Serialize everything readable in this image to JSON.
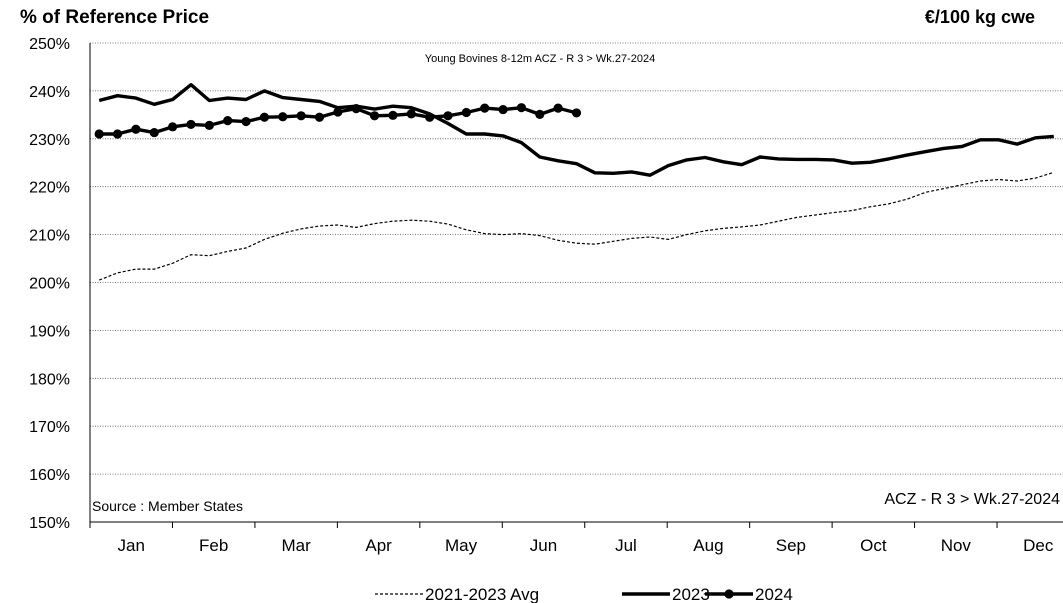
{
  "header": {
    "title": "% of Reference Price",
    "unit": "€/100 kg  cwe"
  },
  "chart_data": {
    "type": "line",
    "subtitle": "Young Bovines 8-12m ACZ - R 3     > Wk.27-2024",
    "source_note": "Source : Member States",
    "series_note": "ACZ - R 3     > Wk.27-2024",
    "x_categories": [
      "Jan",
      "Feb",
      "Mar",
      "Apr",
      "May",
      "Jun",
      "Jul",
      "Aug",
      "Sep",
      "Oct",
      "Nov",
      "Dec"
    ],
    "y_ticks": [
      "150%",
      "160%",
      "170%",
      "180%",
      "190%",
      "200%",
      "210%",
      "220%",
      "230%",
      "240%",
      "250%"
    ],
    "ylim": [
      150,
      250
    ],
    "xlim_weeks": [
      1,
      53
    ],
    "grid": "horizontal-dotted",
    "legend_position": "bottom",
    "series": [
      {
        "name": "2021-2023 Avg",
        "style": "dashed",
        "color": "#000000",
        "x": [
          1,
          2,
          3,
          4,
          5,
          6,
          7,
          8,
          9,
          10,
          11,
          12,
          13,
          14,
          15,
          16,
          17,
          18,
          19,
          20,
          21,
          22,
          23,
          24,
          25,
          26,
          27,
          28,
          29,
          30,
          31,
          32,
          33,
          34,
          35,
          36,
          37,
          38,
          39,
          40,
          41,
          42,
          43,
          44,
          45,
          46,
          47,
          48,
          49,
          50,
          51,
          52,
          53
        ],
        "values": [
          200.5,
          202,
          202.8,
          202.8,
          204,
          205.8,
          205.6,
          206.5,
          207.2,
          209,
          210.3,
          211.2,
          211.8,
          212,
          211.5,
          212.3,
          212.8,
          213.0,
          212.8,
          212.2,
          211.0,
          210.2,
          210.0,
          210.2,
          209.8,
          208.8,
          208.2,
          208.0,
          208.6,
          209.2,
          209.5,
          209.0,
          210.0,
          210.8,
          211.3,
          211.6,
          212.0,
          212.8,
          213.6,
          214.1,
          214.6,
          215.0,
          215.8,
          216.4,
          217.4,
          218.8,
          219.6,
          220.4,
          221.2,
          221.5,
          221.2,
          221.8,
          223.0
        ]
      },
      {
        "name": "2023",
        "style": "solid",
        "color": "#000000",
        "x": [
          1,
          2,
          3,
          4,
          5,
          6,
          7,
          8,
          9,
          10,
          11,
          12,
          13,
          14,
          15,
          16,
          17,
          18,
          19,
          20,
          21,
          22,
          23,
          24,
          25,
          26,
          27,
          28,
          29,
          30,
          31,
          32,
          33,
          34,
          35,
          36,
          37,
          38,
          39,
          40,
          41,
          42,
          43,
          44,
          45,
          46,
          47,
          48,
          49,
          50,
          51,
          52,
          53
        ],
        "values": [
          238.0,
          239.0,
          238.5,
          237.2,
          238.2,
          241.3,
          238.0,
          238.5,
          238.2,
          240.0,
          238.6,
          238.2,
          237.8,
          236.5,
          236.8,
          236.2,
          236.8,
          236.5,
          235.2,
          233.2,
          231.0,
          231.0,
          230.6,
          229.2,
          226.2,
          225.4,
          224.8,
          222.9,
          222.8,
          223.1,
          222.4,
          224.4,
          225.6,
          226.1,
          225.2,
          224.6,
          226.2,
          225.8,
          225.7,
          225.7,
          225.6,
          224.9,
          225.1,
          225.8,
          226.6,
          227.3,
          228.0,
          228.4,
          229.8,
          229.8,
          228.9,
          230.2,
          230.5
        ]
      },
      {
        "name": "2024",
        "style": "solid-markers",
        "color": "#000000",
        "x": [
          1,
          2,
          3,
          4,
          5,
          6,
          7,
          8,
          9,
          10,
          11,
          12,
          13,
          14,
          15,
          16,
          17,
          18,
          19,
          20,
          21,
          22,
          23,
          24,
          25,
          26,
          27
        ],
        "values": [
          231.0,
          231.0,
          232.0,
          231.3,
          232.5,
          233.0,
          232.8,
          233.8,
          233.6,
          234.5,
          234.6,
          234.8,
          234.5,
          235.6,
          236.3,
          234.8,
          234.9,
          235.2,
          234.5,
          234.8,
          235.5,
          236.4,
          236.1,
          236.5,
          235.1,
          236.4,
          235.4
        ]
      }
    ],
    "legend": [
      {
        "label": "2021-2023 Avg",
        "style": "dashed"
      },
      {
        "label": "2023",
        "style": "solid"
      },
      {
        "label": "2024",
        "style": "solid-markers"
      }
    ]
  }
}
